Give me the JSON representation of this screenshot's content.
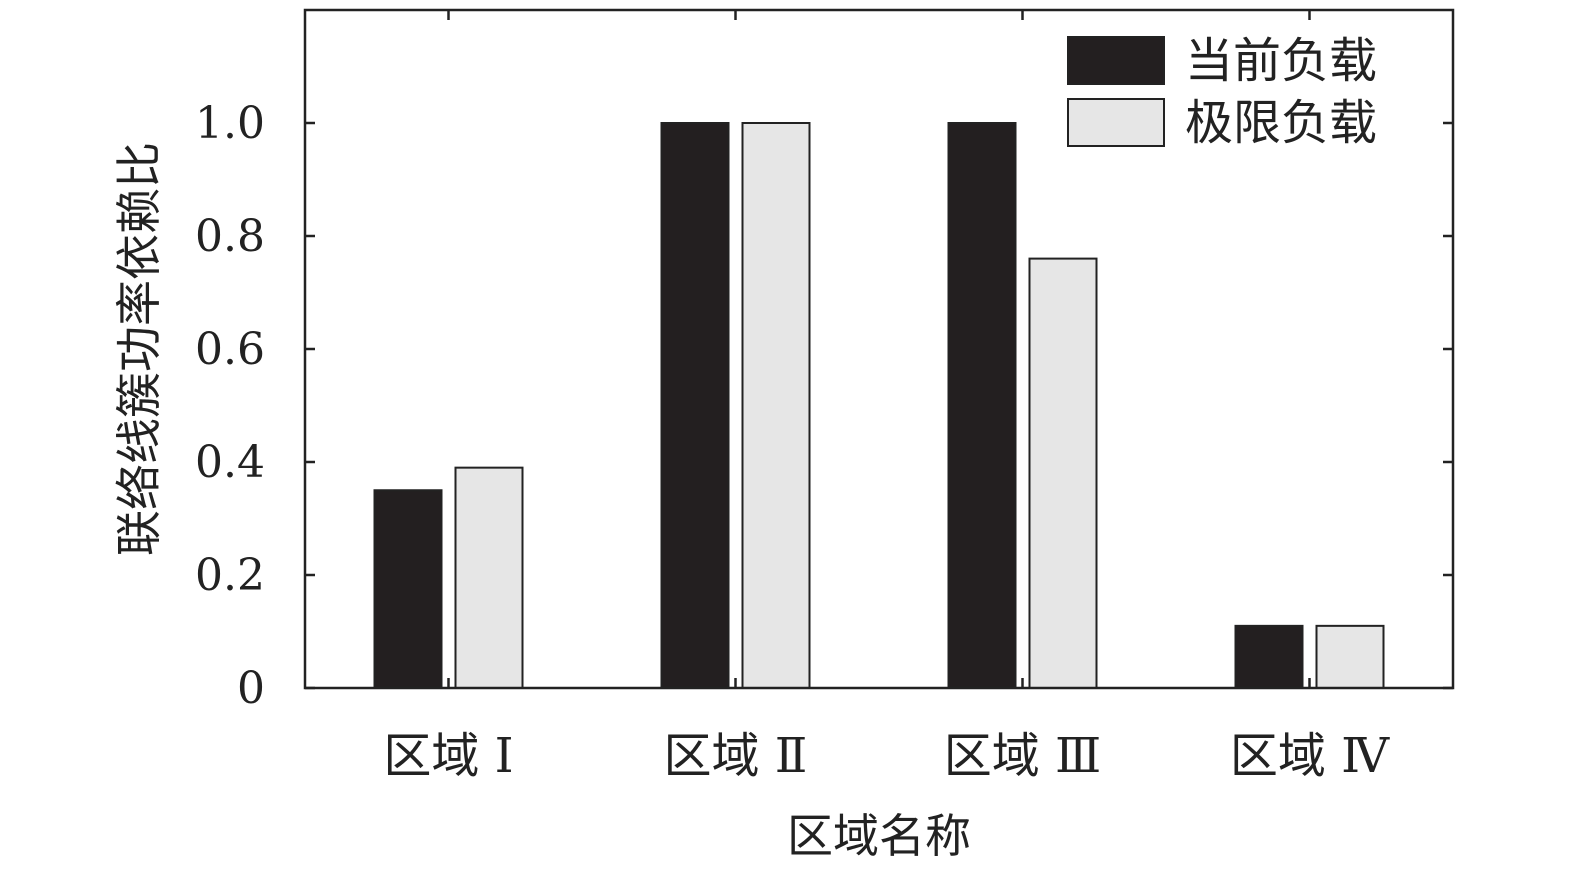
{
  "chart_data": {
    "type": "bar",
    "categories": [
      "区域 Ⅰ",
      "区域 Ⅱ",
      "区域 Ⅲ",
      "区域 Ⅳ"
    ],
    "series": [
      {
        "name": "当前负载",
        "values": [
          0.35,
          1.0,
          1.0,
          0.11
        ],
        "color": "#231f20"
      },
      {
        "name": "极限负载",
        "values": [
          0.39,
          1.0,
          0.76,
          0.11
        ],
        "color": "#e6e6e6"
      }
    ],
    "xlabel": "区域名称",
    "ylabel": "联络线簇功率依赖比",
    "ylim": [
      0,
      1.2
    ],
    "yticks": [
      0,
      0.2,
      0.4,
      0.6,
      0.8,
      1.0
    ],
    "ytick_labels": [
      "0",
      "0.2",
      "0.4",
      "0.6",
      "0.8",
      "1.0"
    ],
    "legend_position": "top-right",
    "grid": false
  }
}
